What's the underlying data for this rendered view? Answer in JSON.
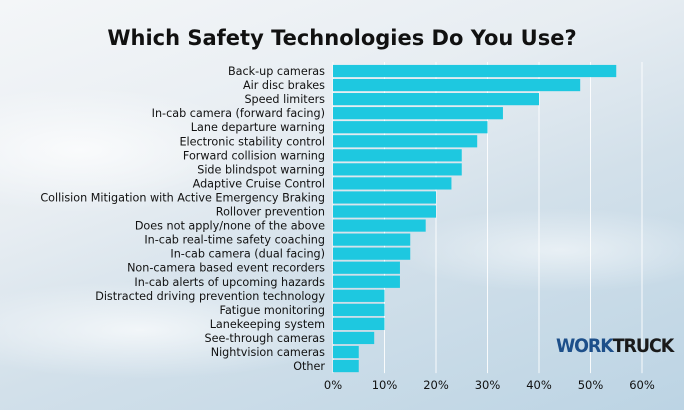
{
  "chart_data": {
    "type": "bar",
    "orientation": "horizontal",
    "title": "Which Safety Technologies Do You Use?",
    "categories": [
      "Back-up cameras",
      "Air disc brakes",
      "Speed limiters",
      "In-cab camera (forward facing)",
      "Lane departure warning",
      "Electronic stability control",
      "Forward collision warning",
      "Side blindspot warning",
      "Adaptive Cruise Control",
      "Collision Mitigation with Active Emergency Braking",
      "Rollover prevention",
      "Does not apply/none of the above",
      "In-cab real-time safety coaching",
      "In-cab camera (dual facing)",
      "Non-camera based event recorders",
      "In-cab alerts of upcoming hazards",
      "Distracted driving prevention technology",
      "Fatigue monitoring",
      "Lanekeeping system",
      "See-through cameras",
      "Nightvision cameras",
      "Other"
    ],
    "values": [
      55,
      48,
      40,
      33,
      30,
      28,
      25,
      25,
      23,
      20,
      20,
      18,
      15,
      15,
      13,
      13,
      10,
      10,
      10,
      8,
      5,
      5
    ],
    "unit": "%",
    "xlim": [
      0,
      60
    ],
    "xticks": [
      "0%",
      "10%",
      "20%",
      "30%",
      "40%",
      "50%",
      "60%"
    ],
    "grid": true,
    "bar_color": "#1ec8e0",
    "grid_color": "#ffffff"
  },
  "logo": {
    "part1": "WORK",
    "part2": "TRUCK"
  }
}
